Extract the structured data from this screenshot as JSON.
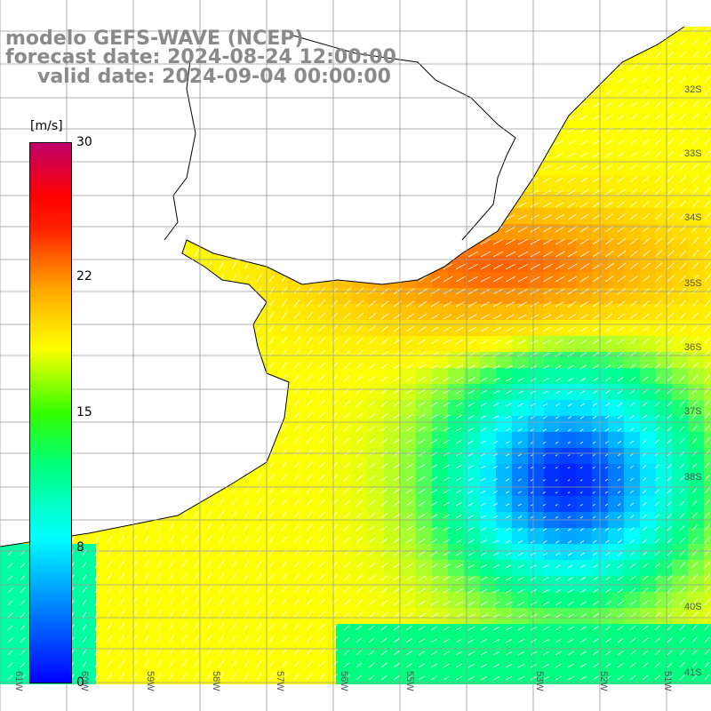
{
  "title": {
    "line1": "modelo GEFS-WAVE (NCEP)",
    "line2": "forecast date: 2024-08-24 12:00:00",
    "line3": "valid date: 2024-09-04 00:00:00"
  },
  "colorbar": {
    "unit": "[m/s]",
    "ticks": [
      "30",
      "22",
      "15",
      "8",
      "0"
    ],
    "min": 0,
    "max": 30,
    "colors": [
      "#0000ff",
      "#00aaff",
      "#00ffff",
      "#00ff80",
      "#33ff00",
      "#ffff00",
      "#ffa500",
      "#ff2200",
      "#ff0000",
      "#c0006a"
    ]
  },
  "lat_labels": [
    "32S",
    "33S",
    "34S",
    "35S",
    "36S",
    "37S",
    "38S",
    "40S",
    "41S"
  ],
  "lon_labels": [
    "61W",
    "60W",
    "59W",
    "58W",
    "57W",
    "56W",
    "55W",
    "53W",
    "52W",
    "51W"
  ],
  "map": {
    "variable": "wind speed",
    "land_color": "#ffffff",
    "grid_color": "#9a9a9a"
  }
}
